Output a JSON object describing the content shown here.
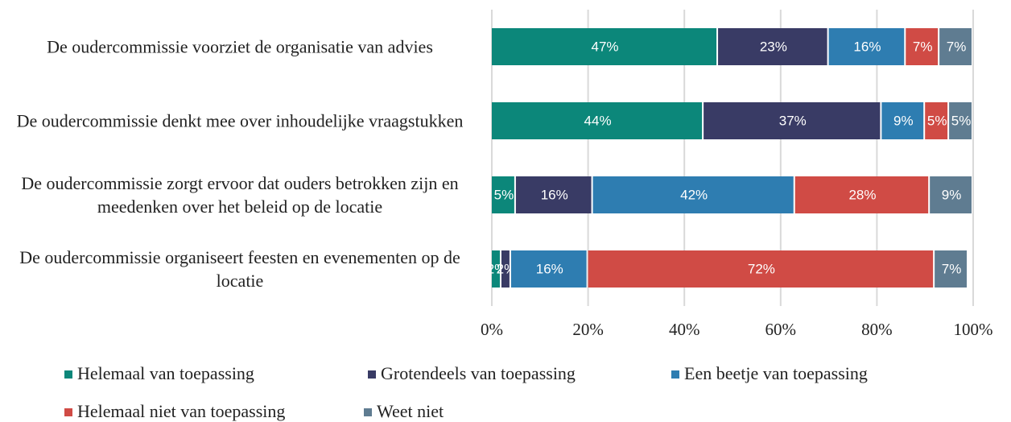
{
  "chart_data": {
    "type": "stacked-barh",
    "categories": [
      "De oudercommissie voorziet de organisatie van advies",
      "De oudercommissie denkt mee over inhoudelijke vraagstukken",
      "De oudercommissie zorgt ervoor dat ouders betrokken zijn en meedenken over het beleid op de locatie",
      "De oudercommissie organiseert feesten en evenementen op de locatie"
    ],
    "series": [
      {
        "name": "Helemaal van toepassing",
        "color": "#0c877a",
        "values": [
          47,
          44,
          5,
          2
        ],
        "value_labels": [
          "47%",
          "44%",
          "5%",
          "2%"
        ]
      },
      {
        "name": "Grotendeels van toepassing",
        "color": "#393b65",
        "values": [
          23,
          37,
          16,
          2
        ],
        "value_labels": [
          "23%",
          "37%",
          "16%",
          "2%"
        ]
      },
      {
        "name": "Een beetje van toepassing",
        "color": "#2e7db1",
        "values": [
          16,
          9,
          42,
          16
        ],
        "value_labels": [
          "16%",
          "9%",
          "42%",
          "16%"
        ]
      },
      {
        "name": "Helemaal niet van toepassing",
        "color": "#d04b45",
        "values": [
          7,
          5,
          28,
          72
        ],
        "value_labels": [
          "7%",
          "5%",
          "28%",
          "72%"
        ]
      },
      {
        "name": "Weet niet",
        "color": "#5f7c91",
        "values": [
          7,
          5,
          9,
          7
        ],
        "value_labels": [
          "7%",
          "5%",
          "9%",
          "7%"
        ]
      }
    ],
    "xlim": [
      0,
      100
    ],
    "xticks": [
      {
        "value": 0,
        "label": "0%"
      },
      {
        "value": 20,
        "label": "20%"
      },
      {
        "value": 40,
        "label": "40%"
      },
      {
        "value": 60,
        "label": "60%"
      },
      {
        "value": 80,
        "label": "80%"
      },
      {
        "value": 100,
        "label": "100%"
      }
    ],
    "grid": true,
    "legend": "bottom"
  }
}
